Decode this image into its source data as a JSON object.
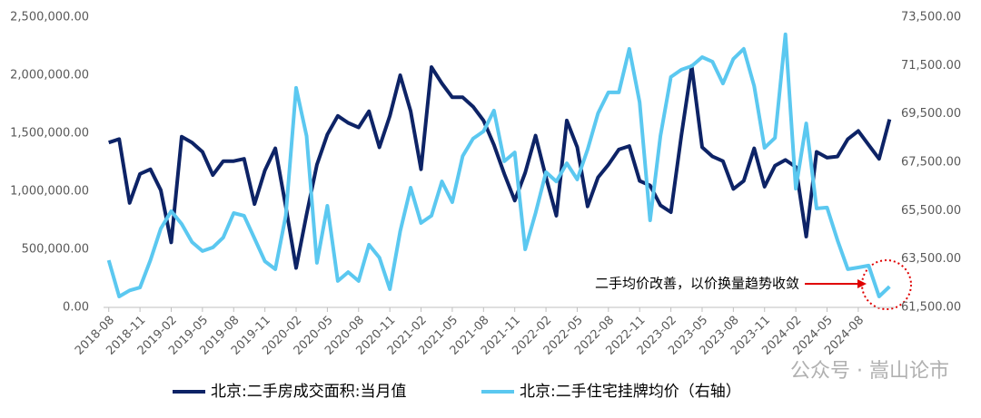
{
  "chart_data": {
    "type": "line",
    "annotation": "二手均价改善，以价换量趋势收敛",
    "watermark": "公众号 · 嵩山论市",
    "categories": [
      "2018-08",
      null,
      null,
      "2018-11",
      null,
      null,
      "2019-02",
      null,
      null,
      "2019-05",
      null,
      null,
      "2019-08",
      null,
      null,
      "2019-11",
      null,
      null,
      "2020-02",
      null,
      null,
      "2020-05",
      null,
      null,
      "2020-08",
      null,
      null,
      "2020-11",
      null,
      null,
      "2021-02",
      null,
      null,
      "2021-05",
      null,
      null,
      "2021-08",
      null,
      null,
      "2021-11",
      null,
      null,
      "2022-02",
      null,
      null,
      "2022-05",
      null,
      null,
      "2022-08",
      null,
      null,
      "2022-11",
      null,
      null,
      "2023-02",
      null,
      null,
      "2023-05",
      null,
      null,
      "2023-08",
      null,
      null,
      "2023-11",
      null,
      null,
      "2024-02",
      null,
      null,
      "2024-05",
      null,
      null,
      "2024-08",
      null,
      null,
      null
    ],
    "series": [
      {
        "name": "北京:二手房成交面积:当月值",
        "color": "#0d2366",
        "axis": "y",
        "values": [
          1420000,
          1450000,
          900000,
          1150000,
          1190000,
          1010000,
          560000,
          1470000,
          1420000,
          1340000,
          1140000,
          1260000,
          1260000,
          1280000,
          890000,
          1180000,
          1370000,
          870000,
          340000,
          800000,
          1230000,
          1490000,
          1650000,
          1590000,
          1550000,
          1690000,
          1380000,
          1650000,
          2000000,
          1690000,
          1190000,
          2070000,
          1930000,
          1810000,
          1810000,
          1730000,
          1610000,
          1400000,
          1150000,
          920000,
          1160000,
          1480000,
          1120000,
          790000,
          1610000,
          1380000,
          870000,
          1120000,
          1230000,
          1360000,
          1390000,
          1090000,
          1050000,
          880000,
          820000,
          1480000,
          2080000,
          1380000,
          1300000,
          1260000,
          1020000,
          1090000,
          1370000,
          1040000,
          1220000,
          1270000,
          1210000,
          610000,
          1340000,
          1290000,
          1300000,
          1450000,
          1520000,
          1400000,
          1280000,
          1620000
        ]
      },
      {
        "name": "北京:二手住宅挂牌均价（右轴）",
        "color": "#5bc8f0",
        "axis": "y2",
        "values": [
          63450,
          61950,
          62200,
          62320,
          63450,
          64760,
          65480,
          64950,
          64200,
          63830,
          63980,
          64390,
          65400,
          65290,
          64350,
          63410,
          63080,
          65290,
          70580,
          68590,
          63340,
          65700,
          62590,
          62960,
          62590,
          64090,
          63560,
          62250,
          64650,
          66450,
          64990,
          65290,
          66710,
          65850,
          67760,
          68480,
          68780,
          69640,
          67540,
          67910,
          63900,
          65400,
          67090,
          66710,
          67460,
          66790,
          68030,
          69530,
          70390,
          70390,
          72190,
          69980,
          65100,
          68590,
          71030,
          71330,
          71480,
          71850,
          71660,
          70760,
          71780,
          72190,
          70650,
          68100,
          68510,
          72790,
          66410,
          69110,
          65590,
          65630,
          64280,
          63080,
          63150,
          63230,
          61950,
          62360
        ]
      }
    ],
    "ylim": [
      0,
      2500000
    ],
    "yticks": [
      {
        "value": 0,
        "label": "0.00"
      },
      {
        "value": 500000,
        "label": "500,000.00"
      },
      {
        "value": 1000000,
        "label": "1,000,000.00"
      },
      {
        "value": 1500000,
        "label": "1,500,000.00"
      },
      {
        "value": 2000000,
        "label": "2,000,000.00"
      },
      {
        "value": 2500000,
        "label": "2,500,000.00"
      }
    ],
    "y2lim": [
      61500,
      73500
    ],
    "y2ticks": [
      {
        "value": 61500,
        "label": "61,500.00"
      },
      {
        "value": 63500,
        "label": "63,500.00"
      },
      {
        "value": 65500,
        "label": "65,500.00"
      },
      {
        "value": 67500,
        "label": "67,500.00"
      },
      {
        "value": 69500,
        "label": "69,500.00"
      },
      {
        "value": 71500,
        "label": "71,500.00"
      },
      {
        "value": 73500,
        "label": "73,500.00"
      }
    ]
  }
}
